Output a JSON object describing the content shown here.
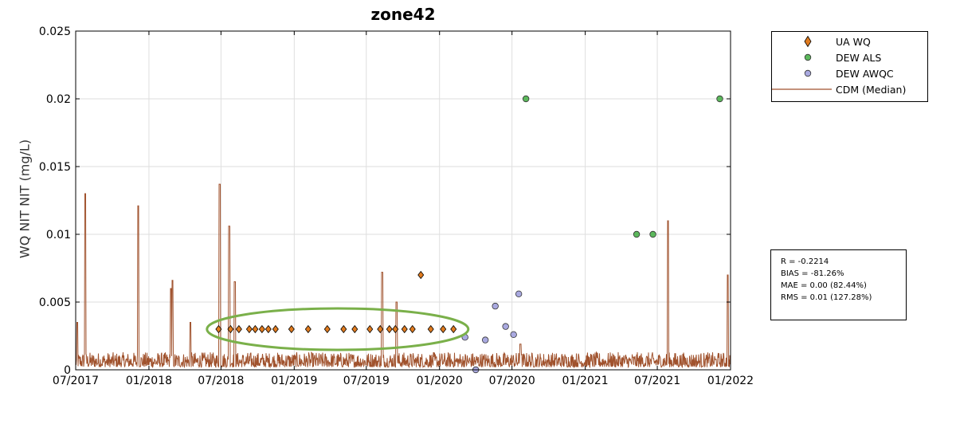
{
  "chart_data": {
    "type": "scatter",
    "title": "zone42",
    "xlabel": "",
    "ylabel": "WQ NIT NIT (mg/L)",
    "xlim": [
      "2017-07-01",
      "2022-01-01"
    ],
    "ylim": [
      0,
      0.025
    ],
    "xticks": [
      "07/2017",
      "01/2018",
      "07/2018",
      "01/2019",
      "07/2019",
      "01/2020",
      "07/2020",
      "01/2021",
      "07/2021",
      "01/2022"
    ],
    "yticks": [
      "0",
      "0.005",
      "0.01",
      "0.015",
      "0.02",
      "0.025"
    ],
    "grid": true,
    "legend_position": "outside-top-right",
    "series": [
      {
        "name": "UA WQ",
        "marker": "diamond",
        "color": "#e07b1f",
        "points": [
          [
            "2018-06-25",
            0.003
          ],
          [
            "2018-07-25",
            0.003
          ],
          [
            "2018-08-15",
            0.003
          ],
          [
            "2018-09-10",
            0.003
          ],
          [
            "2018-09-25",
            0.003
          ],
          [
            "2018-10-12",
            0.003
          ],
          [
            "2018-10-28",
            0.003
          ],
          [
            "2018-11-15",
            0.003
          ],
          [
            "2018-12-25",
            0.003
          ],
          [
            "2019-02-05",
            0.003
          ],
          [
            "2019-03-25",
            0.003
          ],
          [
            "2019-05-05",
            0.003
          ],
          [
            "2019-06-02",
            0.003
          ],
          [
            "2019-07-10",
            0.003
          ],
          [
            "2019-08-05",
            0.003
          ],
          [
            "2019-08-28",
            0.003
          ],
          [
            "2019-09-12",
            0.003
          ],
          [
            "2019-10-05",
            0.003
          ],
          [
            "2019-10-25",
            0.003
          ],
          [
            "2019-11-15",
            0.007
          ],
          [
            "2019-12-10",
            0.003
          ],
          [
            "2020-01-10",
            0.003
          ],
          [
            "2020-02-05",
            0.003
          ]
        ]
      },
      {
        "name": "DEW ALS",
        "marker": "circle",
        "color": "#5cb85c",
        "points": [
          [
            "2020-08-05",
            0.02
          ],
          [
            "2021-05-10",
            0.01
          ],
          [
            "2021-06-20",
            0.01
          ],
          [
            "2021-12-05",
            0.02
          ]
        ]
      },
      {
        "name": "DEW AWQC",
        "marker": "circle",
        "color": "#a9a9e0",
        "points": [
          [
            "2020-03-05",
            0.0024
          ],
          [
            "2020-04-01",
            0.0
          ],
          [
            "2020-04-25",
            0.0022
          ],
          [
            "2020-05-20",
            0.0047
          ],
          [
            "2020-06-15",
            0.0032
          ],
          [
            "2020-07-05",
            0.0026
          ],
          [
            "2020-07-18",
            0.0056
          ]
        ]
      },
      {
        "name": "CDM (Median)",
        "type": "line",
        "color": "#a0522d",
        "baseline_range": [
          0.0002,
          0.0013
        ],
        "spikes": [
          [
            "2017-07-05",
            0.0035
          ],
          [
            "2017-07-25",
            0.013
          ],
          [
            "2017-12-05",
            0.0121
          ],
          [
            "2018-02-25",
            0.006
          ],
          [
            "2018-03-01",
            0.0066
          ],
          [
            "2018-04-15",
            0.0035
          ],
          [
            "2018-06-28",
            0.0137
          ],
          [
            "2018-07-22",
            0.0106
          ],
          [
            "2018-08-05",
            0.0065
          ],
          [
            "2019-08-10",
            0.0072
          ],
          [
            "2019-09-15",
            0.005
          ],
          [
            "2020-07-22",
            0.0019
          ],
          [
            "2021-07-28",
            0.011
          ],
          [
            "2021-12-25",
            0.007
          ]
        ]
      }
    ],
    "stats": [
      "R = -0.2214",
      "BIAS = -81.26%",
      "MAE = 0.00 (82.44%)",
      "RMS = 0.01 (127.28%)"
    ],
    "annotation": {
      "shape": "ellipse",
      "color": "#7ab04a",
      "x_center": "2019-04-20",
      "y_center": 0.003
    }
  }
}
